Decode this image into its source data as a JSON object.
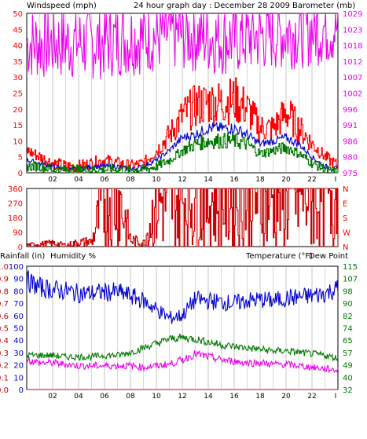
{
  "header": {
    "title": "24 hour graph day : December 28 2009",
    "left_label": "Windspeed (mph)",
    "right_label": "Barometer (mb)"
  },
  "colors": {
    "windspeed": "#ff0000",
    "barometer": "#ee00ee",
    "average_wind": "#0000cc",
    "lull_wind": "#007700",
    "direction": "#cc0000",
    "humidity": "#0000cc",
    "temperature": "#007700",
    "dew_point": "#ee00ee",
    "rainfall": "#cc0000",
    "grid": "#d8d8d8",
    "axis": "#000000"
  },
  "x_axis": {
    "ticks": [
      "02",
      "04",
      "06",
      "08",
      "10",
      "12",
      "14",
      "16",
      "18",
      "20",
      "22",
      "I"
    ],
    "range_hours": [
      0,
      24
    ]
  },
  "chart_data": [
    {
      "type": "line",
      "panel": "wind",
      "x_unit": "hour",
      "y_left": {
        "label": "Windspeed (mph)",
        "range": [
          0,
          50
        ],
        "ticks": [
          "0",
          "5",
          "10",
          "15",
          "20",
          "25",
          "30",
          "35",
          "40",
          "45",
          "50"
        ]
      },
      "y_right": {
        "label": "Barometer (mb)",
        "range": [
          975,
          1029
        ],
        "ticks": [
          "975",
          "980",
          "986",
          "991",
          "996",
          "1002",
          "1007",
          "1012",
          "1018",
          "1023",
          "1029"
        ]
      },
      "series": [
        {
          "key": "gust",
          "axis": "left",
          "x": [
            0,
            1,
            2,
            3,
            4,
            5,
            6,
            7,
            8,
            9,
            10,
            11,
            12,
            13,
            14,
            15,
            16,
            17,
            18,
            19,
            20,
            21,
            22,
            23,
            24
          ],
          "values": [
            7,
            5,
            3,
            2,
            2,
            3,
            4,
            3,
            2,
            3,
            7,
            12,
            18,
            21,
            22,
            22,
            23,
            20,
            14,
            14,
            19,
            14,
            9,
            5,
            2
          ]
        },
        {
          "key": "average",
          "axis": "left",
          "x": [
            0,
            1,
            2,
            3,
            4,
            5,
            6,
            7,
            8,
            9,
            10,
            11,
            12,
            13,
            14,
            15,
            16,
            17,
            18,
            19,
            20,
            21,
            22,
            23,
            24
          ],
          "values": [
            4,
            3,
            2,
            1,
            1,
            2,
            2,
            2,
            1,
            2,
            4,
            7,
            11,
            12,
            14,
            14,
            14,
            12,
            9,
            10,
            11,
            9,
            5,
            2,
            1
          ]
        },
        {
          "key": "lull",
          "axis": "left",
          "x": [
            0,
            1,
            2,
            3,
            4,
            5,
            6,
            7,
            8,
            9,
            10,
            11,
            12,
            13,
            14,
            15,
            16,
            17,
            18,
            19,
            20,
            21,
            22,
            23,
            24
          ],
          "values": [
            2,
            2,
            1,
            1,
            1,
            1,
            1,
            1,
            1,
            1,
            2,
            4,
            7,
            9,
            10,
            10,
            10,
            9,
            6,
            7,
            8,
            6,
            3,
            1,
            0
          ]
        },
        {
          "key": "barometer",
          "axis": "right",
          "x": [
            0,
            1,
            2,
            3,
            4,
            5,
            6,
            7,
            8,
            9,
            10,
            11,
            12,
            13,
            14,
            15,
            16,
            17,
            18,
            19,
            20,
            21,
            22,
            23,
            24
          ],
          "values": [
            1019,
            1019,
            1019,
            1019,
            1019,
            1019,
            1019.5,
            1020,
            1020.5,
            1021,
            1021.5,
            1022,
            1022,
            1021.5,
            1021,
            1020.5,
            1020.5,
            1021,
            1021.5,
            1022,
            1022.5,
            1023,
            1023.5,
            1024,
            1024
          ]
        }
      ]
    },
    {
      "type": "line",
      "panel": "direction",
      "x_unit": "hour",
      "y_left": {
        "range": [
          0,
          360
        ],
        "ticks": [
          "0",
          "90",
          "180",
          "270",
          "360"
        ]
      },
      "y_right": {
        "ticks": [
          "N",
          "W",
          "S",
          "E",
          "N"
        ]
      },
      "series": [
        {
          "key": "direction",
          "axis": "left",
          "x": [
            0,
            1,
            2,
            3,
            4,
            5,
            6,
            7,
            8,
            9,
            10,
            11,
            12,
            13,
            14,
            15,
            16,
            17,
            18,
            19,
            20,
            21,
            22,
            23,
            24
          ],
          "values": [
            10,
            15,
            20,
            10,
            25,
            30,
            320,
            330,
            40,
            20,
            280,
            290,
            295,
            300,
            300,
            305,
            305,
            310,
            310,
            315,
            320,
            325,
            330,
            335,
            340
          ]
        }
      ]
    },
    {
      "type": "line",
      "panel": "weather",
      "x_unit": "hour",
      "y_left": {
        "label": "Rainfall (in)",
        "range": [
          0,
          1
        ],
        "ticks": [
          "0.0",
          "0.1",
          "0.2",
          "0.3",
          "0.4",
          "0.5",
          "0.6",
          "0.7",
          "0.8",
          "0.9",
          "1.0"
        ]
      },
      "y_left2": {
        "label": "Humidity %",
        "range": [
          0,
          100
        ],
        "ticks": [
          "0",
          "10",
          "20",
          "30",
          "40",
          "50",
          "60",
          "70",
          "80",
          "90",
          "100"
        ]
      },
      "y_right": {
        "label": "Temperature (°F)",
        "label2": "Dew Point",
        "range": [
          32,
          115
        ],
        "ticks": [
          "32",
          "40",
          "49",
          "57",
          "65",
          "74",
          "82",
          "90",
          "98",
          "107",
          "115"
        ]
      },
      "series": [
        {
          "key": "humidity",
          "axis": "left2",
          "x": [
            0,
            1,
            2,
            3,
            4,
            5,
            6,
            7,
            8,
            9,
            10,
            11,
            12,
            13,
            14,
            15,
            16,
            17,
            18,
            19,
            20,
            21,
            22,
            23,
            24
          ],
          "values": [
            88,
            83,
            81,
            80,
            78,
            78,
            79,
            79,
            76,
            72,
            65,
            58,
            60,
            73,
            72,
            71,
            70,
            72,
            73,
            72,
            74,
            75,
            76,
            78,
            82
          ]
        },
        {
          "key": "temperature",
          "axis": "right",
          "x": [
            0,
            1,
            2,
            3,
            4,
            5,
            6,
            7,
            8,
            9,
            10,
            11,
            12,
            13,
            14,
            15,
            16,
            17,
            18,
            19,
            20,
            21,
            22,
            23,
            24
          ],
          "values": [
            55,
            55,
            55,
            54,
            54,
            54,
            55,
            55,
            57,
            60,
            63,
            66,
            67,
            66,
            64,
            62,
            61,
            60,
            59,
            58,
            58,
            57,
            56,
            55,
            53
          ]
        },
        {
          "key": "dew_point",
          "axis": "right",
          "x": [
            0,
            1,
            2,
            3,
            4,
            5,
            6,
            7,
            8,
            9,
            10,
            11,
            12,
            13,
            14,
            15,
            16,
            17,
            18,
            19,
            20,
            21,
            22,
            23,
            24
          ],
          "values": [
            52,
            50,
            50,
            49,
            48,
            48,
            48,
            48,
            48,
            47,
            48,
            49,
            52,
            56,
            54,
            52,
            51,
            50,
            50,
            49,
            49,
            48,
            47,
            46,
            45
          ]
        },
        {
          "key": "rainfall",
          "axis": "left",
          "x": [
            0,
            24
          ],
          "values": [
            0,
            0
          ]
        }
      ]
    }
  ]
}
